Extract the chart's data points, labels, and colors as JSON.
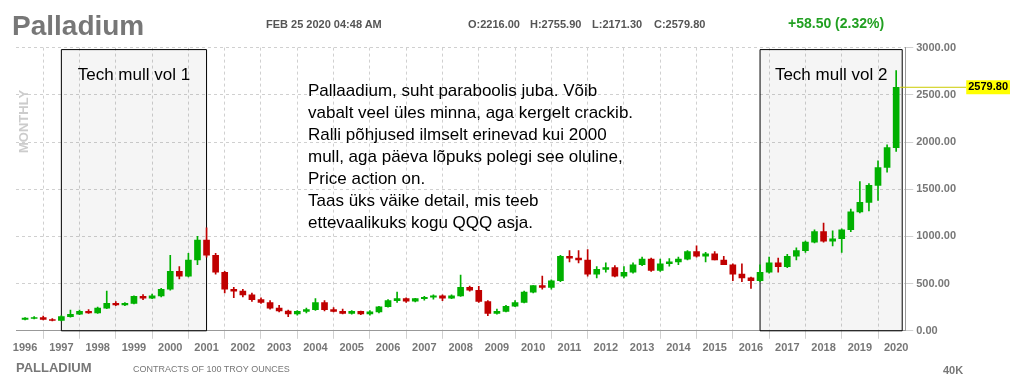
{
  "chart_data": {
    "type": "candlestick",
    "title": "Palladium",
    "ylabel": "MONTHLY",
    "annotations": [
      "FEB 25 2020 04:48 AM",
      "O:2216.00",
      "H:2755.90",
      "L:2171.30",
      "C:2579.80",
      "+58.50 (2.32%)",
      "Pallaadium, suht paraboolis juba. Võib\nvabalt veel üles minna, aga kergelt crackib.\nRalli põhjused ilmselt erinevad kui 2000\nmull, aga päeva lõpuks polegi see oluline,\nPrice action on.\nTaas üks väike detail, mis teeb\nettevaalikuks kogu QQQ asja.",
      "PALLADIUM",
      "CONTRACTS OF 100 TROY OUNCES",
      "40K",
      {
        "text": "2579.80",
        "x": "2020-01",
        "y": 2579.8
      }
    ],
    "x": [
      "1996-01",
      "1996-04",
      "1996-07",
      "1996-10",
      "1997-01",
      "1997-04",
      "1997-07",
      "1997-10",
      "1998-01",
      "1998-04",
      "1998-07",
      "1998-10",
      "1999-01",
      "1999-04",
      "1999-07",
      "1999-10",
      "2000-01",
      "2000-04",
      "2000-07",
      "2000-10",
      "2001-01",
      "2001-04",
      "2001-07",
      "2001-10",
      "2002-01",
      "2002-04",
      "2002-07",
      "2002-10",
      "2003-01",
      "2003-04",
      "2003-07",
      "2003-10",
      "2004-01",
      "2004-04",
      "2004-07",
      "2004-10",
      "2005-01",
      "2005-04",
      "2005-07",
      "2005-10",
      "2006-01",
      "2006-04",
      "2006-07",
      "2006-10",
      "2007-01",
      "2007-04",
      "2007-07",
      "2007-10",
      "2008-01",
      "2008-04",
      "2008-07",
      "2008-10",
      "2009-01",
      "2009-04",
      "2009-07",
      "2009-10",
      "2010-01",
      "2010-04",
      "2010-07",
      "2010-10",
      "2011-01",
      "2011-04",
      "2011-07",
      "2011-10",
      "2012-01",
      "2012-04",
      "2012-07",
      "2012-10",
      "2013-01",
      "2013-04",
      "2013-07",
      "2013-10",
      "2014-01",
      "2014-04",
      "2014-07",
      "2014-10",
      "2015-01",
      "2015-04",
      "2015-07",
      "2015-10",
      "2016-01",
      "2016-04",
      "2016-07",
      "2016-10",
      "2017-01",
      "2017-04",
      "2017-07",
      "2017-10",
      "2018-01",
      "2018-04",
      "2018-07",
      "2018-10",
      "2019-01",
      "2019-04",
      "2019-07",
      "2019-10",
      "2020-01"
    ],
    "ohlc": [
      [
        120,
        140,
        115,
        135
      ],
      [
        130,
        150,
        125,
        140
      ],
      [
        140,
        155,
        115,
        120
      ],
      [
        120,
        130,
        105,
        110
      ],
      [
        110,
        160,
        105,
        150
      ],
      [
        150,
        220,
        145,
        175
      ],
      [
        175,
        220,
        170,
        205
      ],
      [
        205,
        225,
        185,
        190
      ],
      [
        190,
        250,
        185,
        240
      ],
      [
        240,
        420,
        235,
        290
      ],
      [
        290,
        310,
        265,
        275
      ],
      [
        275,
        300,
        265,
        290
      ],
      [
        290,
        370,
        285,
        365
      ],
      [
        365,
        385,
        330,
        345
      ],
      [
        345,
        390,
        340,
        370
      ],
      [
        370,
        450,
        360,
        440
      ],
      [
        440,
        800,
        430,
        630
      ],
      [
        630,
        680,
        550,
        580
      ],
      [
        580,
        820,
        570,
        750
      ],
      [
        750,
        1000,
        700,
        960
      ],
      [
        960,
        1090,
        780,
        800
      ],
      [
        800,
        820,
        600,
        620
      ],
      [
        620,
        630,
        400,
        440
      ],
      [
        440,
        460,
        350,
        420
      ],
      [
        420,
        440,
        360,
        380
      ],
      [
        380,
        400,
        310,
        330
      ],
      [
        330,
        350,
        290,
        300
      ],
      [
        300,
        320,
        230,
        240
      ],
      [
        240,
        270,
        200,
        210
      ],
      [
        210,
        220,
        150,
        180
      ],
      [
        180,
        215,
        165,
        205
      ],
      [
        205,
        240,
        190,
        225
      ],
      [
        225,
        340,
        215,
        300
      ],
      [
        300,
        320,
        210,
        225
      ],
      [
        225,
        245,
        200,
        205
      ],
      [
        205,
        230,
        180,
        185
      ],
      [
        185,
        215,
        175,
        205
      ],
      [
        205,
        210,
        170,
        180
      ],
      [
        180,
        215,
        165,
        200
      ],
      [
        200,
        260,
        190,
        255
      ],
      [
        255,
        330,
        250,
        320
      ],
      [
        320,
        410,
        300,
        340
      ],
      [
        340,
        350,
        300,
        315
      ],
      [
        315,
        345,
        305,
        340
      ],
      [
        340,
        365,
        325,
        355
      ],
      [
        355,
        380,
        335,
        370
      ],
      [
        370,
        380,
        320,
        345
      ],
      [
        345,
        380,
        340,
        370
      ],
      [
        370,
        590,
        365,
        460
      ],
      [
        460,
        475,
        420,
        430
      ],
      [
        430,
        470,
        300,
        310
      ],
      [
        310,
        320,
        160,
        185
      ],
      [
        185,
        230,
        175,
        205
      ],
      [
        205,
        270,
        200,
        260
      ],
      [
        260,
        320,
        255,
        300
      ],
      [
        300,
        420,
        295,
        410
      ],
      [
        410,
        480,
        400,
        480
      ],
      [
        480,
        580,
        440,
        460
      ],
      [
        460,
        540,
        440,
        530
      ],
      [
        530,
        800,
        520,
        790
      ],
      [
        790,
        850,
        730,
        770
      ],
      [
        770,
        850,
        720,
        750
      ],
      [
        750,
        860,
        580,
        600
      ],
      [
        600,
        680,
        560,
        650
      ],
      [
        650,
        720,
        620,
        670
      ],
      [
        670,
        690,
        570,
        580
      ],
      [
        580,
        680,
        560,
        620
      ],
      [
        620,
        720,
        610,
        700
      ],
      [
        700,
        780,
        690,
        760
      ],
      [
        760,
        770,
        630,
        640
      ],
      [
        640,
        760,
        630,
        710
      ],
      [
        710,
        765,
        685,
        730
      ],
      [
        730,
        780,
        700,
        760
      ],
      [
        760,
        850,
        750,
        840
      ],
      [
        840,
        900,
        780,
        790
      ],
      [
        790,
        830,
        730,
        815
      ],
      [
        815,
        840,
        750,
        750
      ],
      [
        750,
        790,
        700,
        700
      ],
      [
        700,
        710,
        530,
        600
      ],
      [
        600,
        710,
        520,
        560
      ],
      [
        560,
        570,
        450,
        530
      ],
      [
        530,
        700,
        520,
        620
      ],
      [
        620,
        780,
        610,
        720
      ],
      [
        720,
        770,
        620,
        680
      ],
      [
        680,
        810,
        670,
        790
      ],
      [
        790,
        880,
        750,
        850
      ],
      [
        850,
        950,
        830,
        940
      ],
      [
        940,
        1070,
        930,
        1050
      ],
      [
        1050,
        1140,
        940,
        950
      ],
      [
        950,
        1060,
        900,
        975
      ],
      [
        975,
        1080,
        830,
        1070
      ],
      [
        1070,
        1290,
        1050,
        1260
      ],
      [
        1260,
        1580,
        1250,
        1360
      ],
      [
        1360,
        1560,
        1270,
        1540
      ],
      [
        1540,
        1800,
        1380,
        1730
      ],
      [
        1730,
        1970,
        1680,
        1940
      ],
      [
        1940,
        2755.9,
        1900,
        2579.8
      ]
    ],
    "colors": [
      "#00b000",
      "#00b000",
      "#c00000",
      "#c00000",
      "#00b000",
      "#00b000",
      "#00b000",
      "#c00000",
      "#00b000",
      "#00b000",
      "#c00000",
      "#00b000",
      "#00b000",
      "#c00000",
      "#00b000",
      "#00b000",
      "#00b000",
      "#c00000",
      "#00b000",
      "#00b000",
      "#c00000",
      "#c00000",
      "#c00000",
      "#c00000",
      "#c00000",
      "#c00000",
      "#c00000",
      "#c00000",
      "#c00000",
      "#c00000",
      "#00b000",
      "#00b000",
      "#00b000",
      "#c00000",
      "#c00000",
      "#c00000",
      "#00b000",
      "#c00000",
      "#00b000",
      "#00b000",
      "#00b000",
      "#00b000",
      "#c00000",
      "#00b000",
      "#00b000",
      "#00b000",
      "#c00000",
      "#00b000",
      "#00b000",
      "#c00000",
      "#c00000",
      "#c00000",
      "#00b000",
      "#00b000",
      "#00b000",
      "#00b000",
      "#00b000",
      "#c00000",
      "#00b000",
      "#00b000",
      "#c00000",
      "#c00000",
      "#c00000",
      "#00b000",
      "#00b000",
      "#c00000",
      "#00b000",
      "#00b000",
      "#00b000",
      "#c00000",
      "#00b000",
      "#00b000",
      "#00b000",
      "#00b000",
      "#c00000",
      "#00b000",
      "#c00000",
      "#c00000",
      "#c00000",
      "#c00000",
      "#c00000",
      "#00b000",
      "#00b000",
      "#c00000",
      "#00b000",
      "#00b000",
      "#00b000",
      "#00b000",
      "#c00000",
      "#00b000",
      "#00b000",
      "#00b000",
      "#00b000",
      "#00b000",
      "#00b000",
      "#00b000",
      "#00b000"
    ],
    "xlim": [
      "1995-10",
      "2020-04"
    ],
    "xticks": [
      "1996",
      "1997",
      "1998",
      "1999",
      "2000",
      "2001",
      "2002",
      "2003",
      "2004",
      "2005",
      "2006",
      "2007",
      "2008",
      "2009",
      "2010",
      "2011",
      "2012",
      "2013",
      "2014",
      "2015",
      "2016",
      "2017",
      "2018",
      "2019",
      "2020"
    ],
    "ylim": [
      0,
      3000
    ],
    "yticks": [
      {
        "value": 0,
        "label": "0.00"
      },
      {
        "value": 500,
        "label": "500.00"
      },
      {
        "value": 1000,
        "label": "1000.00"
      },
      {
        "value": 1500,
        "label": "1500.00"
      },
      {
        "value": 2000,
        "label": "2000.00"
      },
      {
        "value": 2500,
        "label": "2500.00"
      },
      {
        "value": 3000,
        "label": "3000.00"
      }
    ],
    "bands": [
      {
        "axis": "x",
        "from": "1997-01",
        "to": "2001-01",
        "label": "Tech mull vol 1",
        "color": "#000000"
      },
      {
        "axis": "x",
        "from": "2016-04",
        "to": "2020-03",
        "label": "Tech mull vol 2",
        "color": "#000000"
      }
    ],
    "grid": true,
    "legend": false
  }
}
